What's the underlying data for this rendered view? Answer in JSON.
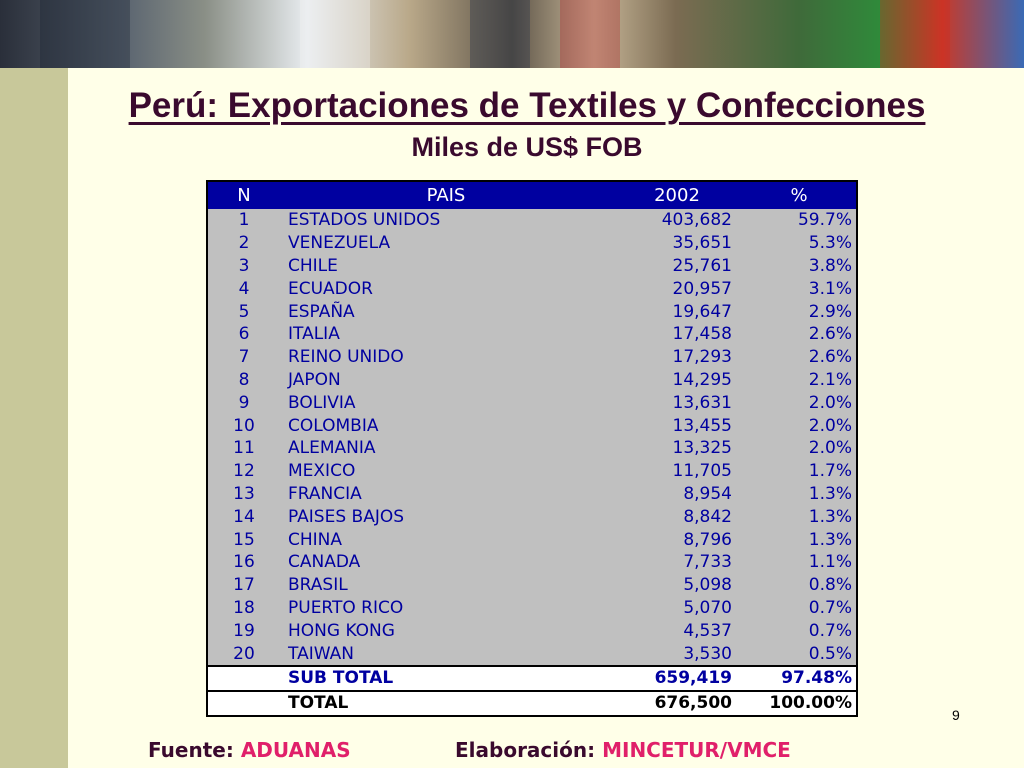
{
  "title": "Perú: Exportaciones de Textiles y Confecciones",
  "subtitle": "Miles de US$ FOB",
  "table": {
    "headers": [
      "N",
      "PAIS",
      "2002",
      "%"
    ],
    "rows": [
      [
        "1",
        "ESTADOS UNIDOS",
        "403,682",
        "59.7%"
      ],
      [
        "2",
        "VENEZUELA",
        "35,651",
        "5.3%"
      ],
      [
        "3",
        "CHILE",
        "25,761",
        "3.8%"
      ],
      [
        "4",
        "ECUADOR",
        "20,957",
        "3.1%"
      ],
      [
        "5",
        "ESPAÑA",
        "19,647",
        "2.9%"
      ],
      [
        "6",
        "ITALIA",
        "17,458",
        "2.6%"
      ],
      [
        "7",
        "REINO UNIDO",
        "17,293",
        "2.6%"
      ],
      [
        "8",
        "JAPON",
        "14,295",
        "2.1%"
      ],
      [
        "9",
        "BOLIVIA",
        "13,631",
        "2.0%"
      ],
      [
        "10",
        "COLOMBIA",
        "13,455",
        "2.0%"
      ],
      [
        "11",
        "ALEMANIA",
        "13,325",
        "2.0%"
      ],
      [
        "12",
        "MEXICO",
        "11,705",
        "1.7%"
      ],
      [
        "13",
        "FRANCIA",
        "8,954",
        "1.3%"
      ],
      [
        "14",
        "PAISES BAJOS",
        "8,842",
        "1.3%"
      ],
      [
        "15",
        "CHINA",
        "8,796",
        "1.3%"
      ],
      [
        "16",
        "CANADA",
        "7,733",
        "1.1%"
      ],
      [
        "17",
        "BRASIL",
        "5,098",
        "0.8%"
      ],
      [
        "18",
        "PUERTO RICO",
        "5,070",
        "0.7%"
      ],
      [
        "19",
        "HONG KONG",
        "4,537",
        "0.7%"
      ],
      [
        "20",
        "TAIWAN",
        "3,530",
        "0.5%"
      ]
    ],
    "subtotal": {
      "label": "SUB TOTAL",
      "value": "659,419",
      "pct": "97.48%"
    },
    "total": {
      "label": "TOTAL",
      "value": "676,500",
      "pct": "100.00%"
    }
  },
  "page_number": "9",
  "footer": {
    "source_label": "Fuente:",
    "source_value": "ADUANAS",
    "elab_label": "Elaboración:",
    "elab_value": "MINCETUR/VMCE"
  },
  "colors": {
    "header_bg": "#0000a0",
    "title": "#3a0a2e",
    "accent": "#e0206a",
    "table_bg": "#c0c0c0"
  }
}
